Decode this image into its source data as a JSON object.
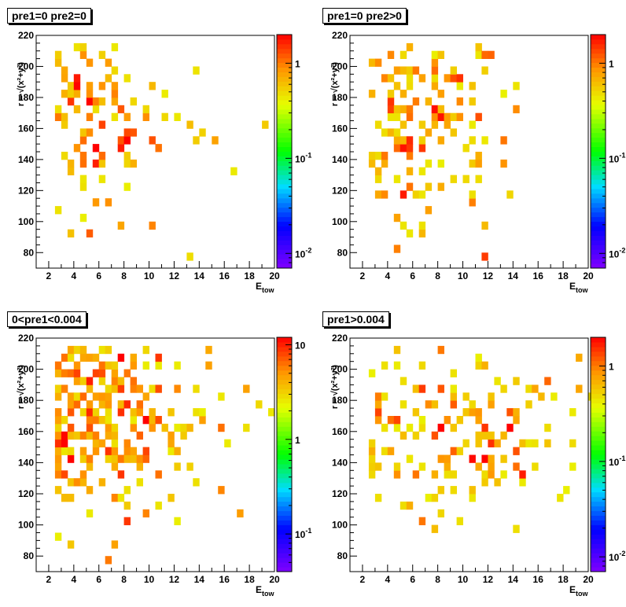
{
  "chart_data": [
    {
      "type": "heatmap",
      "title": "pre1=0 pre2=0",
      "xlabel": "E_tow",
      "ylabel": "r = √(x²+y²)",
      "xlim": [
        1,
        20
      ],
      "ylim": [
        70,
        220
      ],
      "x_ticks": [
        "2",
        "4",
        "6",
        "8",
        "10",
        "12",
        "14",
        "16",
        "18",
        "20"
      ],
      "y_ticks": [
        "80",
        "100",
        "120",
        "140",
        "160",
        "180",
        "200",
        "220"
      ],
      "z_scale": "log",
      "zlim": [
        0.007,
        2
      ],
      "z_ticks": [
        "10^-2",
        "10^-1",
        "1"
      ],
      "seed": 11,
      "density": 0.36
    },
    {
      "type": "heatmap",
      "title": "pre1=0 pre2>0",
      "xlabel": "E_tow",
      "ylabel": "r = √(x²+y²)",
      "xlim": [
        1,
        20
      ],
      "ylim": [
        70,
        220
      ],
      "x_ticks": [
        "2",
        "4",
        "6",
        "8",
        "10",
        "12",
        "14",
        "16",
        "18",
        "20"
      ],
      "y_ticks": [
        "80",
        "100",
        "120",
        "140",
        "160",
        "180",
        "200",
        "220"
      ],
      "z_scale": "log",
      "zlim": [
        0.007,
        2
      ],
      "z_ticks": [
        "10^-2",
        "10^-1",
        "1"
      ],
      "seed": 23,
      "density": 0.42
    },
    {
      "type": "heatmap",
      "title": "0<pre1<0.004",
      "xlabel": "E_tow",
      "ylabel": "r = √(x²+y²)",
      "xlim": [
        1,
        20
      ],
      "ylim": [
        70,
        220
      ],
      "x_ticks": [
        "2",
        "4",
        "6",
        "8",
        "10",
        "12",
        "14",
        "16",
        "18",
        "20"
      ],
      "y_ticks": [
        "80",
        "100",
        "120",
        "140",
        "160",
        "180",
        "200",
        "220"
      ],
      "z_scale": "log",
      "zlim": [
        0.04,
        12
      ],
      "z_ticks": [
        "10^-1",
        "1",
        "10"
      ],
      "seed": 37,
      "density": 0.62
    },
    {
      "type": "heatmap",
      "title": "pre1>0.004",
      "xlabel": "E_tow",
      "ylabel": "r = √(x²+y²)",
      "xlim": [
        1,
        20
      ],
      "ylim": [
        70,
        220
      ],
      "x_ticks": [
        "2",
        "4",
        "6",
        "8",
        "10",
        "12",
        "14",
        "16",
        "18",
        "20"
      ],
      "y_ticks": [
        "80",
        "100",
        "120",
        "140",
        "160",
        "180",
        "200",
        "220"
      ],
      "z_scale": "log",
      "zlim": [
        0.007,
        2
      ],
      "z_ticks": [
        "10^-2",
        "10^-1",
        "1"
      ],
      "seed": 53,
      "density": 0.36
    }
  ]
}
